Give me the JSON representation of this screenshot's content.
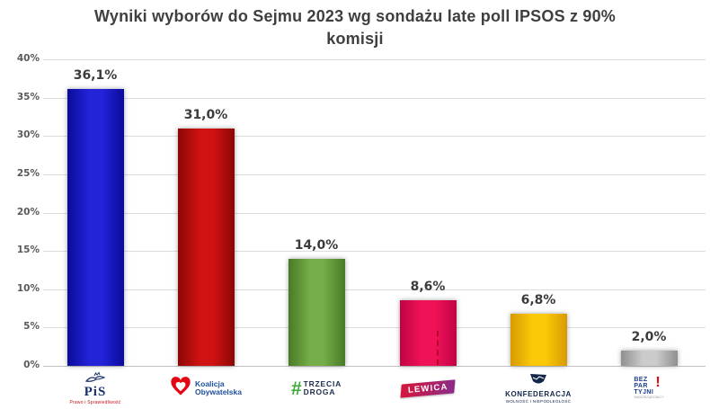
{
  "title_line1": "Wyniki wyborów do Sejmu 2023 wg sondażu late poll IPSOS z 90%",
  "title_line2": "komisji",
  "chart_data": {
    "type": "bar",
    "title": "Wyniki wyborów do Sejmu 2023 wg sondażu late poll IPSOS z 90% komisji",
    "categories": [
      "PiS",
      "Koalicja Obywatelska",
      "Trzecia Droga",
      "Lewica",
      "Konfederacja",
      "Bezpartyjni Samorządowcy"
    ],
    "values": [
      36.1,
      31.0,
      14.0,
      8.6,
      6.8,
      2.0
    ],
    "value_labels": [
      "36,1%",
      "31,0%",
      "14,0%",
      "8,6%",
      "6,8%",
      "2,0%"
    ],
    "ylim": [
      0,
      40
    ],
    "ytick_step": 5,
    "yticks": [
      "0%",
      "5%",
      "10%",
      "15%",
      "20%",
      "25%",
      "30%",
      "35%",
      "40%"
    ],
    "grid": true,
    "legend": false,
    "bar_colors": [
      {
        "edge": "#0b0b9a",
        "mid": "#2323d8"
      },
      {
        "edge": "#8c0606",
        "mid": "#d01212"
      },
      {
        "edge": "#4a7a26",
        "mid": "#74ad49"
      },
      {
        "edge": "#c00345",
        "mid": "#f01257"
      },
      {
        "edge": "#d79a02",
        "mid": "#fbc907"
      },
      {
        "edge": "#8f8f8f",
        "mid": "#cbcbcb"
      }
    ]
  },
  "logos": {
    "pis": {
      "name": "PiS",
      "subtext": "Prawo i Sprawiedliwość"
    },
    "ko": {
      "line1": "Koalicja",
      "line2": "Obywatelska",
      "heart_color": "#e30613",
      "text_color": "#1d4f9e"
    },
    "trzecia_droga": {
      "hash": "#",
      "line1": "TRZECIA",
      "line2": "DROGA"
    },
    "lewica": {
      "label": "LEWICA",
      "gradient_from": "#d1173f",
      "gradient_to": "#8d2b86"
    },
    "konfederacja": {
      "name": "KONFEDERACJA",
      "subtext": "WOLNOŚĆ I NIEPODLEGŁOŚĆ"
    },
    "bezpartyjni": {
      "line1": "BEZ",
      "line2": "PAR",
      "line3": "TYJNI",
      "exclaim": "!",
      "subtext": "SAMORZĄDOWCY"
    }
  }
}
